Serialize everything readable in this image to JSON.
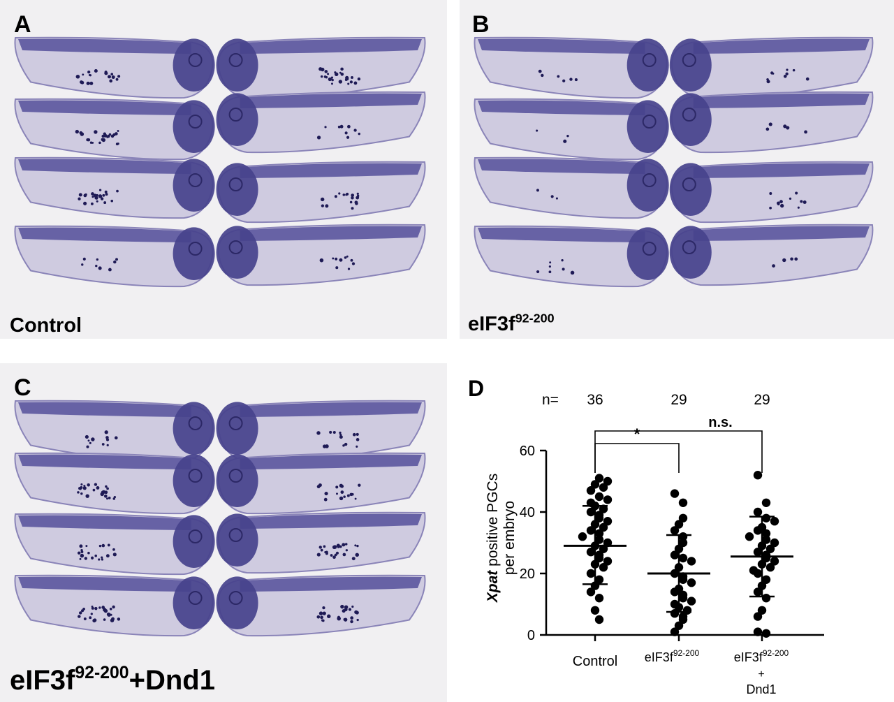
{
  "panels": [
    {
      "letter": "A",
      "condition": "Control",
      "condition_sup": ""
    },
    {
      "letter": "B",
      "condition": "eIF3f",
      "condition_sup": "92-200"
    },
    {
      "letter": "C",
      "condition": "eIF3f",
      "condition_sup": "92-200",
      "condition_suffix": "+Dnd1"
    }
  ],
  "chart_data": {
    "type": "scatter",
    "panel_letter": "D",
    "n_label": "n=",
    "groups": [
      {
        "label": "Control",
        "label_sup": "",
        "n": "36"
      },
      {
        "label": "eIF3f",
        "label_sup": "92-200",
        "n": "29"
      },
      {
        "label": "eIF3f",
        "label_sup": "92-200",
        "label_line2": "+",
        "label_line3": "Dnd1",
        "n": "29"
      }
    ],
    "ylabel_italic": "Xpat",
    "ylabel_rest": " positive PGCs",
    "ylabel_line2": "per embryo",
    "ylim": [
      0,
      60
    ],
    "yticks": [
      "0",
      "20",
      "40",
      "60"
    ],
    "means": [
      29,
      20,
      25.5
    ],
    "sd_upper": [
      42,
      32.5,
      38.5
    ],
    "sd_lower": [
      16.5,
      7.5,
      12.5
    ],
    "significance": [
      {
        "from": 0,
        "to": 1,
        "label": "*"
      },
      {
        "from": 0,
        "to": 2,
        "label": "n.s."
      }
    ],
    "points": [
      [
        51,
        50,
        49,
        48,
        47,
        45,
        44,
        43,
        42,
        41,
        40,
        39,
        38,
        37,
        36,
        35,
        34,
        33,
        32,
        31,
        30,
        29,
        28,
        27,
        26,
        25,
        24,
        23,
        22,
        20,
        18,
        16,
        14,
        12,
        8,
        5
      ],
      [
        46,
        43,
        38,
        36,
        34,
        32,
        30,
        28,
        26,
        25,
        24,
        22,
        20,
        19,
        18,
        17,
        15,
        14,
        13,
        12,
        11,
        10,
        9,
        8,
        7,
        6,
        5,
        3,
        1
      ],
      [
        52,
        43,
        40,
        38,
        37,
        35,
        34,
        33,
        32,
        31,
        30,
        29,
        28,
        27,
        26,
        25,
        24,
        23,
        22,
        21,
        20,
        18,
        16,
        14,
        12,
        8,
        6,
        1,
        0.5
      ]
    ]
  }
}
